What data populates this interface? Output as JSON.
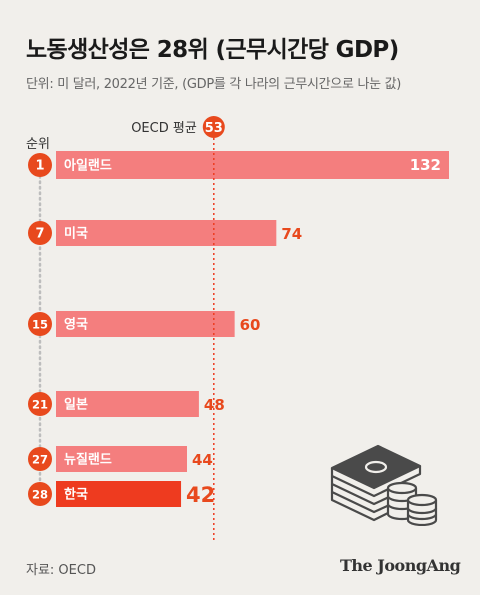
{
  "title": "노동생산성은 28위 (근무시간당 GDP)",
  "subtitle": "단위: 미 달러, 2022년 기준, (GDP를 각 나라의 근무시간으로 나눈 값)",
  "rank_header": "순위",
  "source": "자료: OECD",
  "brand": "The JoongAng",
  "colors": {
    "bar": "#f47e7e",
    "highlight": "#ee3b1f",
    "rank_circle": "#e8491d",
    "value_text": "#e8491d",
    "background": "#f1efeb"
  },
  "icons": [
    "money-stack-icon",
    "coins-icon"
  ],
  "chart_data": {
    "type": "bar",
    "orientation": "horizontal",
    "categories": [
      "아일랜드",
      "미국",
      "영국",
      "일본",
      "뉴질랜드",
      "한국"
    ],
    "ranks": [
      "1",
      "7",
      "15",
      "21",
      "27",
      "28"
    ],
    "values": [
      132,
      74,
      60,
      48,
      44,
      42
    ],
    "value_labels": [
      "132",
      "74",
      "60",
      "48",
      "44",
      "42"
    ],
    "highlight": "한국",
    "reference_line": {
      "label": "OECD 평균",
      "value": 53,
      "value_label": "53"
    },
    "xlim": [
      0,
      132
    ]
  }
}
